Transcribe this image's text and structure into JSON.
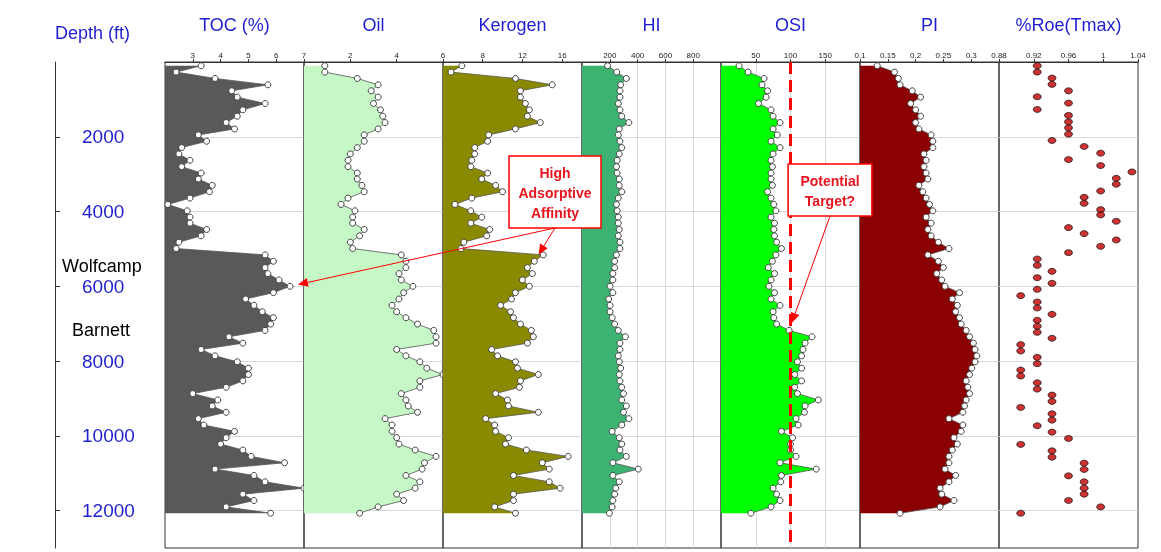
{
  "chart_data": [
    {
      "type": "area",
      "xlabel": "TOC (%)",
      "ylabel": "Depth (ft)",
      "orientation": "horizontal",
      "color": "#595959",
      "marker": "circle",
      "grid": "y",
      "x": [
        100,
        270,
        440,
        610,
        770,
        940,
        1110,
        1280,
        1450,
        1620,
        1790,
        1950,
        2120,
        2290,
        2460,
        2630,
        2800,
        2970,
        3130,
        3300,
        3470,
        3640,
        3810,
        3980,
        4150,
        4310,
        4480,
        4650,
        4820,
        4990,
        5160,
        5330,
        5500,
        5660,
        5830,
        6000,
        6170,
        6340,
        6510,
        6680,
        6840,
        7010,
        7180,
        7350,
        7520,
        7690,
        7860,
        8020,
        8190,
        8360,
        8530,
        8700,
        8870,
        9040,
        9200,
        9370,
        9540,
        9710,
        9880,
        10050,
        10220,
        10380,
        10550,
        10720,
        10890,
        11060,
        11230,
        11400,
        11560,
        11730,
        11900,
        12070
      ],
      "values": [
        3.3,
        2.4,
        3.8,
        5.7,
        4.4,
        4.6,
        5.6,
        4.8,
        4.6,
        4.2,
        4.5,
        3.2,
        3.5,
        2.6,
        2.5,
        2.9,
        2.6,
        3.3,
        3.2,
        3.7,
        3.6,
        2.9,
        2.1,
        2.8,
        2.9,
        2.9,
        3.5,
        3.3,
        2.5,
        2.4,
        5.6,
        5.9,
        5.6,
        5.7,
        6.1,
        6.5,
        5.9,
        4.9,
        5.2,
        5.5,
        5.9,
        5.8,
        5.6,
        4.3,
        4.8,
        3.3,
        3.8,
        4.6,
        5.0,
        5.0,
        4.8,
        4.2,
        3.0,
        3.9,
        3.7,
        4.2,
        3.2,
        3.4,
        4.5,
        4.2,
        4.0,
        4.8,
        5.1,
        6.3,
        3.8,
        5.2,
        5.6,
        7.0,
        4.8,
        5.2,
        4.2,
        5.8
      ],
      "xlim": [
        2,
        7
      ],
      "xticks": [
        3,
        4,
        5,
        6,
        7
      ],
      "ylim": [
        13000,
        0
      ],
      "yticks": [
        2000,
        4000,
        6000,
        8000,
        10000,
        12000
      ],
      "annotations": [
        "Wolfcamp",
        "Barnett",
        "High Adsorptive Affinity"
      ]
    },
    {
      "type": "area",
      "xlabel": "Oil",
      "orientation": "horizontal",
      "color": "#c6f7c6",
      "marker": "circle",
      "grid": "y",
      "tick_labels": "x",
      "x": [
        100,
        270,
        440,
        610,
        770,
        940,
        1110,
        1280,
        1450,
        1620,
        1790,
        1950,
        2120,
        2290,
        2460,
        2630,
        2800,
        2970,
        3130,
        3300,
        3470,
        3640,
        3810,
        3980,
        4150,
        4310,
        4480,
        4650,
        4820,
        4990,
        5160,
        5330,
        5500,
        5660,
        5830,
        6000,
        6170,
        6340,
        6510,
        6680,
        6840,
        7010,
        7180,
        7350,
        7520,
        7690,
        7860,
        8020,
        8190,
        8360,
        8530,
        8700,
        8870,
        9040,
        9200,
        9370,
        9540,
        9710,
        9880,
        10050,
        10220,
        10380,
        10550,
        10720,
        10890,
        11060,
        11230,
        11400,
        11560,
        11730,
        11900,
        12070
      ],
      "values": [
        0.9,
        0.9,
        2.3,
        3.2,
        2.9,
        3.2,
        3.0,
        3.3,
        3.4,
        3.5,
        3.2,
        2.6,
        2.6,
        2.3,
        2.0,
        1.9,
        1.9,
        2.3,
        2.3,
        2.5,
        2.6,
        1.9,
        1.6,
        2.2,
        2.1,
        2.1,
        2.6,
        2.4,
        2.0,
        2.1,
        4.2,
        4.4,
        4.4,
        4.1,
        4.2,
        4.7,
        4.3,
        4.1,
        3.8,
        4.0,
        4.4,
        4.9,
        5.6,
        5.7,
        5.7,
        4.0,
        4.4,
        5.0,
        5.3,
        6.0,
        5.0,
        5.0,
        4.2,
        4.4,
        4.5,
        4.9,
        3.5,
        3.8,
        3.8,
        4.0,
        4.1,
        4.8,
        5.7,
        5.2,
        5.1,
        4.4,
        5.0,
        4.8,
        4.0,
        4.3,
        3.2,
        2.4
      ],
      "xlim": [
        0,
        6
      ],
      "xticks": [
        2,
        4,
        6
      ],
      "ylim": [
        13000,
        0
      ],
      "yticks": [
        2000,
        4000,
        6000,
        8000,
        10000,
        12000
      ]
    },
    {
      "type": "area",
      "xlabel": "Kerogen",
      "orientation": "horizontal",
      "color": "#8a8a00",
      "marker": "circle",
      "grid": "y",
      "tick_labels": "x",
      "x": [
        100,
        270,
        440,
        610,
        770,
        940,
        1110,
        1280,
        1450,
        1620,
        1790,
        1950,
        2120,
        2290,
        2460,
        2630,
        2800,
        2970,
        3130,
        3300,
        3470,
        3640,
        3810,
        3980,
        4150,
        4310,
        4480,
        4650,
        4820,
        4990,
        5160,
        5330,
        5500,
        5660,
        5830,
        6000,
        6170,
        6340,
        6510,
        6680,
        6840,
        7010,
        7180,
        7350,
        7520,
        7690,
        7860,
        8020,
        8190,
        8360,
        8530,
        8700,
        8870,
        9040,
        9200,
        9370,
        9540,
        9710,
        9880,
        10050,
        10220,
        10380,
        10550,
        10720,
        10890,
        11060,
        11230,
        11400,
        11560,
        11730,
        11900,
        12070
      ],
      "values": [
        5.9,
        4.8,
        11.3,
        15.0,
        11.8,
        11.8,
        12.3,
        12.7,
        12.5,
        13.8,
        11.3,
        8.6,
        8.5,
        7.2,
        7.2,
        6.9,
        6.8,
        8.5,
        7.9,
        9.3,
        10.0,
        6.9,
        5.2,
        6.8,
        7.9,
        6.8,
        8.7,
        8.4,
        6.1,
        5.8,
        14.1,
        13.2,
        12.5,
        13.0,
        12.0,
        12.7,
        11.3,
        10.9,
        9.8,
        10.8,
        11.1,
        11.8,
        12.9,
        13.1,
        12.5,
        8.9,
        9.5,
        11.3,
        11.5,
        13.6,
        11.8,
        11.7,
        9.3,
        10.5,
        10.6,
        13.6,
        8.3,
        9.2,
        9.3,
        10.6,
        10.3,
        12.4,
        16.6,
        14.0,
        14.7,
        11.1,
        14.7,
        15.8,
        11.1,
        11.1,
        9.2,
        11.3
      ],
      "xlim": [
        4,
        18
      ],
      "xticks": [
        8,
        12,
        16
      ],
      "ylim": [
        13000,
        0
      ],
      "yticks": [
        2000,
        4000,
        6000,
        8000,
        10000,
        12000
      ]
    },
    {
      "type": "area",
      "xlabel": "HI",
      "orientation": "horizontal",
      "color": "#3cb371",
      "marker": "circle",
      "grid": true,
      "tick_labels": "x",
      "x": [
        100,
        270,
        440,
        610,
        770,
        940,
        1110,
        1280,
        1450,
        1620,
        1790,
        1950,
        2120,
        2290,
        2460,
        2630,
        2800,
        2970,
        3130,
        3300,
        3470,
        3640,
        3810,
        3980,
        4150,
        4310,
        4480,
        4650,
        4820,
        4990,
        5160,
        5330,
        5500,
        5660,
        5830,
        6000,
        6170,
        6340,
        6510,
        6680,
        6840,
        7010,
        7180,
        7350,
        7520,
        7690,
        7860,
        8020,
        8190,
        8360,
        8530,
        8700,
        8870,
        9040,
        9200,
        9370,
        9540,
        9710,
        9880,
        10050,
        10220,
        10380,
        10550,
        10720,
        10890,
        11060,
        11230,
        11400,
        11560,
        11730,
        11900,
        12070
      ],
      "values": [
        184,
        250,
        319,
        278,
        273,
        273,
        261,
        273,
        286,
        337,
        268,
        261,
        273,
        286,
        268,
        253,
        248,
        253,
        268,
        268,
        286,
        261,
        248,
        253,
        261,
        261,
        268,
        261,
        273,
        273,
        248,
        235,
        235,
        222,
        222,
        202,
        222,
        192,
        202,
        202,
        217,
        235,
        261,
        312,
        273,
        273,
        261,
        268,
        278,
        268,
        273,
        286,
        299,
        286,
        319,
        299,
        337,
        286,
        217,
        268,
        286,
        273,
        319,
        222,
        405,
        222,
        268,
        243,
        235,
        222,
        217,
        197
      ],
      "xlim": [
        0,
        1000
      ],
      "xticks": [
        200,
        400,
        600,
        800
      ],
      "ylim": [
        13000,
        0
      ],
      "yticks": [
        2000,
        4000,
        6000,
        8000,
        10000,
        12000
      ]
    },
    {
      "type": "area",
      "xlabel": "OSI",
      "orientation": "horizontal",
      "color": "#00ff00",
      "marker": "circle",
      "grid": true,
      "tick_labels": "x",
      "x": [
        100,
        270,
        440,
        610,
        770,
        940,
        1110,
        1280,
        1450,
        1620,
        1790,
        1950,
        2120,
        2290,
        2460,
        2630,
        2800,
        2970,
        3130,
        3300,
        3470,
        3640,
        3810,
        3980,
        4150,
        4310,
        4480,
        4650,
        4820,
        4990,
        5160,
        5330,
        5500,
        5660,
        5830,
        6000,
        6170,
        6340,
        6510,
        6680,
        6840,
        7010,
        7180,
        7350,
        7520,
        7690,
        7860,
        8020,
        8190,
        8360,
        8530,
        8700,
        8870,
        9040,
        9200,
        9370,
        9540,
        9710,
        9880,
        10050,
        10220,
        10380,
        10550,
        10720,
        10890,
        11060,
        11230,
        11400,
        11560,
        11730,
        11900,
        12070
      ],
      "values": [
        26,
        39,
        62,
        59,
        67,
        65,
        54,
        72,
        75,
        85,
        75,
        81,
        72,
        85,
        75,
        72,
        74,
        72,
        72,
        74,
        67,
        72,
        76,
        79,
        72,
        77,
        76,
        77,
        80,
        87,
        79,
        74,
        68,
        77,
        72,
        69,
        77,
        72,
        85,
        75,
        76,
        80,
        98,
        131,
        121,
        118,
        116,
        110,
        116,
        106,
        116,
        106,
        110,
        140,
        121,
        120,
        108,
        111,
        87,
        103,
        100,
        100,
        108,
        85,
        137,
        87,
        86,
        75,
        80,
        85,
        72,
        43
      ],
      "xlim": [
        0,
        200
      ],
      "xticks": [
        50,
        100,
        150
      ],
      "ylim": [
        13000,
        0
      ],
      "yticks": [
        2000,
        4000,
        6000,
        8000,
        10000,
        12000
      ],
      "ref_lines": [
        {
          "axis": "x",
          "value": 100,
          "color": "#ff0000",
          "line_style": "dashed"
        }
      ],
      "annotations": [
        "Potential Target?"
      ]
    },
    {
      "type": "area",
      "xlabel": "PI",
      "orientation": "horizontal",
      "color": "#8b0000",
      "marker": "circle",
      "grid": "y",
      "tick_labels": "x",
      "x": [
        100,
        270,
        440,
        610,
        770,
        940,
        1110,
        1280,
        1450,
        1620,
        1790,
        1950,
        2120,
        2290,
        2460,
        2630,
        2800,
        2970,
        3130,
        3300,
        3470,
        3640,
        3810,
        3980,
        4150,
        4310,
        4480,
        4650,
        4820,
        4990,
        5160,
        5330,
        5500,
        5660,
        5830,
        6000,
        6170,
        6340,
        6510,
        6680,
        6840,
        7010,
        7180,
        7350,
        7520,
        7690,
        7860,
        8020,
        8190,
        8360,
        8530,
        8700,
        8870,
        9040,
        9200,
        9370,
        9540,
        9710,
        9880,
        10050,
        10220,
        10380,
        10550,
        10720,
        10890,
        11060,
        11230,
        11400,
        11560,
        11730,
        11900,
        12070
      ],
      "values": [
        0.131,
        0.162,
        0.169,
        0.172,
        0.194,
        0.209,
        0.191,
        0.2,
        0.209,
        0.2,
        0.206,
        0.228,
        0.231,
        0.231,
        0.215,
        0.219,
        0.215,
        0.219,
        0.222,
        0.206,
        0.213,
        0.219,
        0.225,
        0.231,
        0.219,
        0.228,
        0.222,
        0.228,
        0.241,
        0.26,
        0.222,
        0.241,
        0.25,
        0.238,
        0.247,
        0.253,
        0.279,
        0.266,
        0.275,
        0.272,
        0.279,
        0.282,
        0.291,
        0.297,
        0.304,
        0.307,
        0.31,
        0.307,
        0.301,
        0.297,
        0.291,
        0.294,
        0.297,
        0.291,
        0.288,
        0.285,
        0.26,
        0.285,
        0.282,
        0.269,
        0.275,
        0.266,
        0.26,
        0.26,
        0.253,
        0.272,
        0.26,
        0.244,
        0.247,
        0.269,
        0.244,
        0.172
      ],
      "xlim": [
        0.1,
        0.35
      ],
      "xticks": [
        0.1,
        0.15,
        0.2,
        0.25,
        0.3
      ],
      "ylim": [
        13000,
        0
      ],
      "yticks": [
        2000,
        4000,
        6000,
        8000,
        10000,
        12000
      ]
    },
    {
      "type": "scatter",
      "xlabel": "%Roe(Tmax)",
      "orientation": "horizontal",
      "color": "#c00000",
      "marker": "circle",
      "grid": "y",
      "tick_labels": "x",
      "x": [
        100,
        270,
        430,
        600,
        770,
        930,
        1100,
        1270,
        1430,
        1600,
        1760,
        1930,
        2100,
        2260,
        2440,
        2610,
        2770,
        2940,
        3110,
        3270,
        3450,
        3620,
        3780,
        3950,
        4090,
        4260,
        4430,
        4590,
        4760,
        4930,
        5100,
        5270,
        5440,
        5600,
        5770,
        5920,
        6080,
        6250,
        6420,
        6580,
        6750,
        6910,
        7070,
        7230,
        7390,
        7560,
        7730,
        7900,
        8070,
        8240,
        8400,
        8580,
        8750,
        8910,
        9080,
        9240,
        9410,
        9580,
        9730,
        9900,
        10070,
        10230,
        10400,
        10570,
        10730,
        10900,
        11070,
        11230,
        11400,
        11560,
        11730,
        11900,
        12070
      ],
      "values": [
        0.924,
        0.924,
        0.941,
        0.941,
        0.96,
        0.924,
        0.96,
        0.924,
        0.96,
        0.96,
        0.96,
        0.96,
        0.941,
        0.978,
        0.997,
        0.96,
        0.997,
        1.033,
        1.015,
        1.015,
        0.997,
        0.978,
        0.978,
        0.997,
        0.997,
        1.015,
        0.96,
        0.978,
        1.015,
        0.997,
        0.96,
        0.924,
        0.924,
        0.941,
        0.924,
        0.941,
        0.924,
        0.905,
        0.924,
        0.924,
        0.941,
        0.924,
        0.924,
        0.924,
        0.941,
        0.905,
        0.905,
        0.924,
        0.924,
        0.905,
        0.905,
        0.924,
        0.924,
        0.941,
        0.941,
        0.905,
        0.941,
        0.941,
        0.924,
        0.941,
        0.96,
        0.905,
        0.941,
        0.941,
        0.978,
        0.978,
        0.96,
        0.978,
        0.978,
        0.978,
        0.96,
        0.997,
        0.905
      ],
      "xlim": [
        0.88,
        1.04
      ],
      "xticks": [
        0.88,
        0.92,
        0.96,
        1,
        1.04
      ],
      "ylim": [
        13000,
        0
      ],
      "yticks": [
        2000,
        4000,
        6000,
        8000,
        10000,
        12000
      ]
    }
  ]
}
